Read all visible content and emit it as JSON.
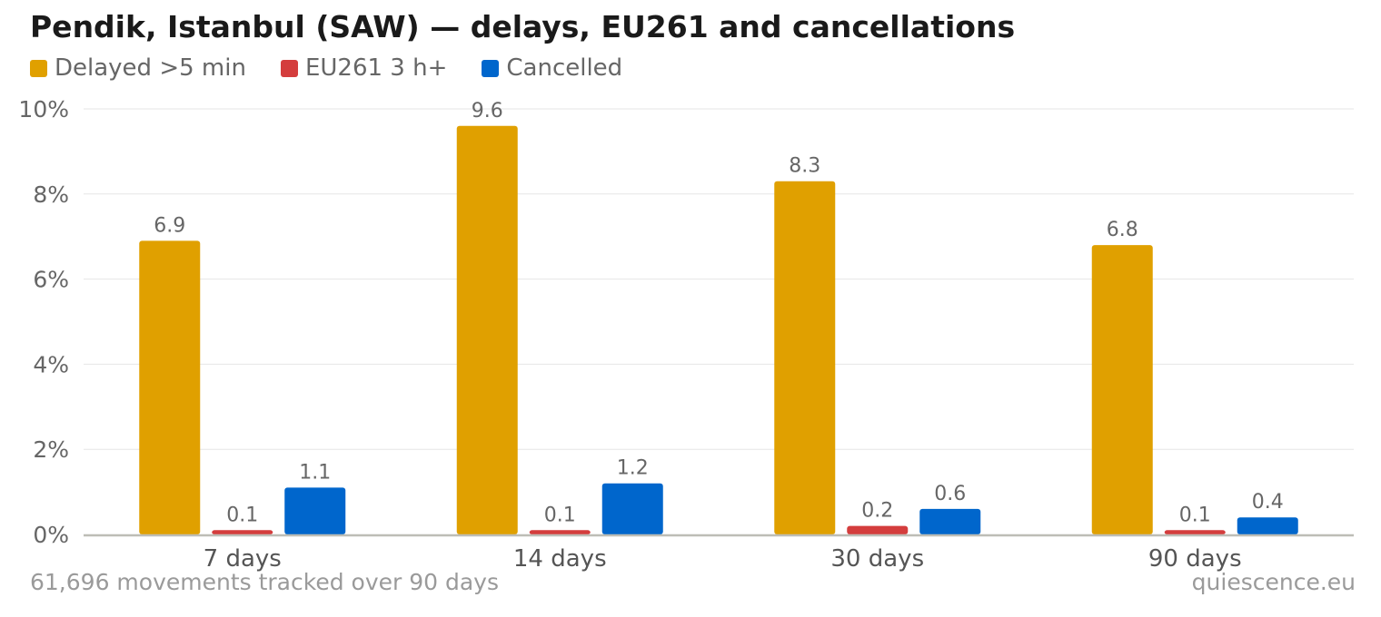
{
  "title": "Pendik, Istanbul (SAW) — delays, EU261 and cancellations",
  "footer": {
    "note": "61,696 movements tracked over 90 days",
    "source": "quiescence.eu"
  },
  "chart_data": {
    "type": "bar",
    "title": "Pendik, Istanbul (SAW) — delays, EU261 and cancellations",
    "xlabel": "",
    "ylabel": "",
    "categories": [
      "7 days",
      "14 days",
      "30 days",
      "90 days"
    ],
    "series": [
      {
        "name": "Delayed >5 min",
        "color": "#e0a000",
        "values": [
          6.9,
          9.6,
          8.3,
          6.8
        ]
      },
      {
        "name": "EU261 3 h+",
        "color": "#d43d3d",
        "values": [
          0.1,
          0.1,
          0.2,
          0.1
        ]
      },
      {
        "name": "Cancelled",
        "color": "#0066cc",
        "values": [
          1.1,
          1.2,
          0.6,
          0.4
        ]
      }
    ],
    "ylim": [
      0,
      10
    ],
    "yticks": [
      0,
      2,
      4,
      6,
      8,
      10
    ],
    "ytick_labels": [
      "0%",
      "2%",
      "4%",
      "6%",
      "8%",
      "10%"
    ],
    "grid": true,
    "legend_position": "top-left"
  }
}
